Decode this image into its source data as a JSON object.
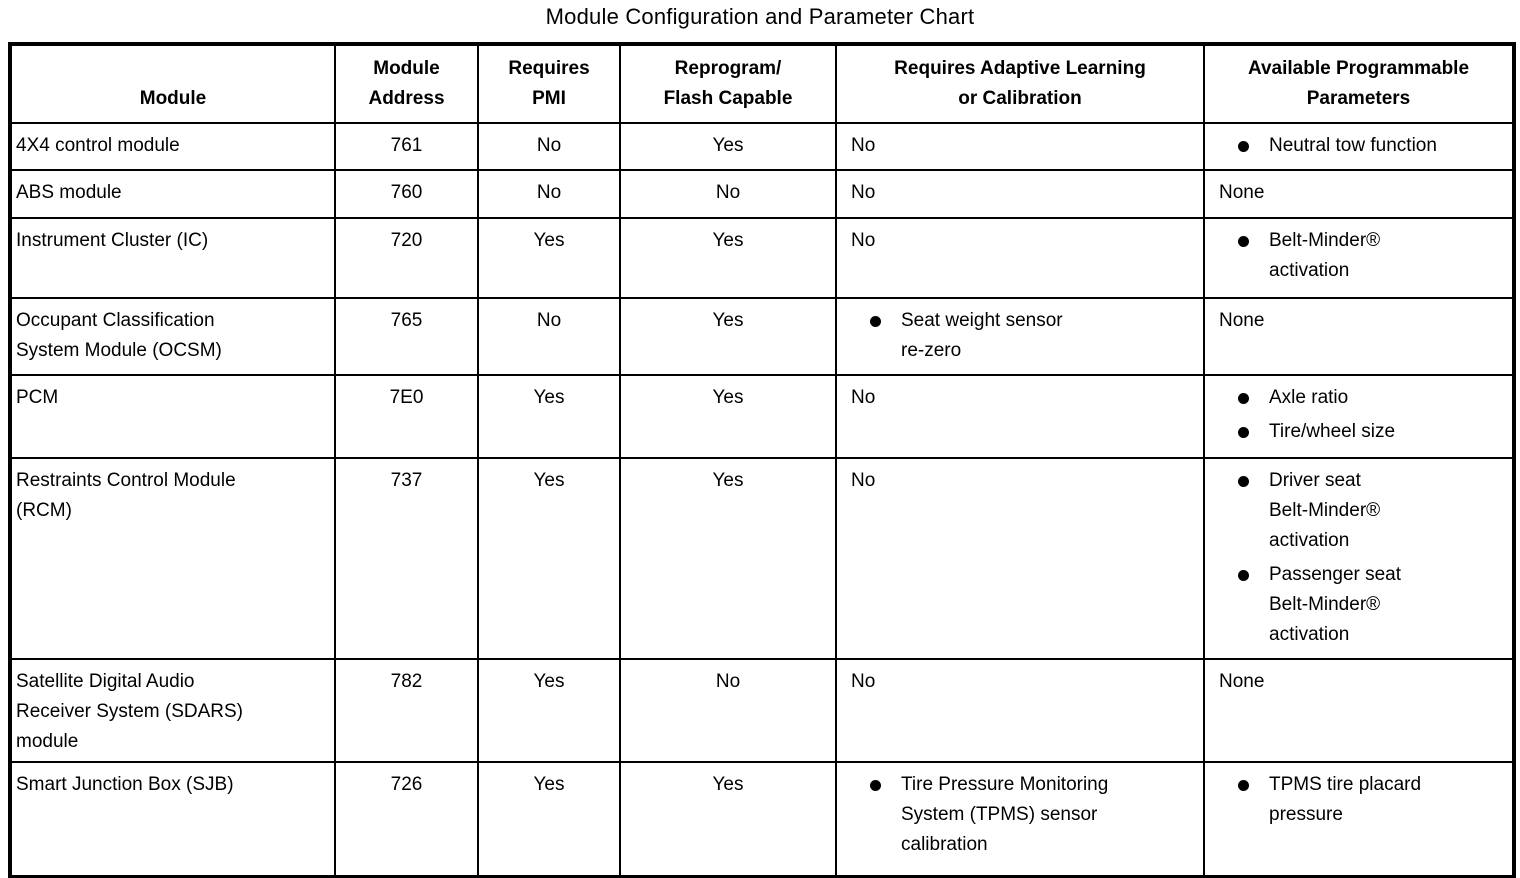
{
  "title": "Module Configuration and Parameter Chart",
  "colors": {
    "text": "#000000",
    "background": "#ffffff",
    "border": "#000000"
  },
  "table": {
    "columns": [
      {
        "id": "module",
        "label": "Module"
      },
      {
        "id": "module-address",
        "label": "Module\nAddress"
      },
      {
        "id": "requires-pmi",
        "label": "Requires\nPMI"
      },
      {
        "id": "reprogram-flash",
        "label": "Reprogram/\nFlash Capable"
      },
      {
        "id": "adaptive-learning",
        "label": "Requires Adaptive Learning\nor Calibration"
      },
      {
        "id": "programmable-parameters",
        "label": "Available Programmable\nParameters"
      }
    ],
    "rows": [
      {
        "module": "4X4 control module",
        "address": "761",
        "requires_pmi": "No",
        "reprogram_flash": "Yes",
        "adaptive": {
          "text": "No"
        },
        "parameters": {
          "bullets": [
            "Neutral tow function"
          ]
        }
      },
      {
        "module": "ABS module",
        "address": "760",
        "requires_pmi": "No",
        "reprogram_flash": "No",
        "adaptive": {
          "text": "No"
        },
        "parameters": {
          "text": "None"
        }
      },
      {
        "module": "Instrument Cluster (IC)",
        "address": "720",
        "requires_pmi": "Yes",
        "reprogram_flash": "Yes",
        "adaptive": {
          "text": "No"
        },
        "parameters": {
          "bullets": [
            "Belt-Minder®\nactivation"
          ]
        }
      },
      {
        "module": "Occupant Classification\nSystem Module (OCSM)",
        "address": "765",
        "requires_pmi": "No",
        "reprogram_flash": "Yes",
        "adaptive": {
          "bullets": [
            "Seat weight sensor\nre-zero"
          ]
        },
        "parameters": {
          "text": "None"
        }
      },
      {
        "module": "PCM",
        "address": "7E0",
        "requires_pmi": "Yes",
        "reprogram_flash": "Yes",
        "adaptive": {
          "text": "No"
        },
        "parameters": {
          "bullets": [
            "Axle ratio",
            "Tire/wheel size"
          ]
        }
      },
      {
        "module": "Restraints Control Module\n(RCM)",
        "address": "737",
        "requires_pmi": "Yes",
        "reprogram_flash": "Yes",
        "adaptive": {
          "text": "No"
        },
        "parameters": {
          "bullets": [
            "Driver seat\nBelt-Minder®\nactivation",
            "Passenger seat\nBelt-Minder®\nactivation"
          ]
        }
      },
      {
        "module": "Satellite Digital Audio\nReceiver System (SDARS)\nmodule",
        "address": "782",
        "requires_pmi": "Yes",
        "reprogram_flash": "No",
        "adaptive": {
          "text": "No"
        },
        "parameters": {
          "text": "None"
        }
      },
      {
        "module": "Smart Junction Box (SJB)",
        "address": "726",
        "requires_pmi": "Yes",
        "reprogram_flash": "Yes",
        "adaptive": {
          "bullets": [
            "Tire Pressure Monitoring\nSystem (TPMS) sensor\ncalibration"
          ]
        },
        "parameters": {
          "bullets": [
            "TPMS tire placard\npressure"
          ]
        }
      }
    ]
  }
}
